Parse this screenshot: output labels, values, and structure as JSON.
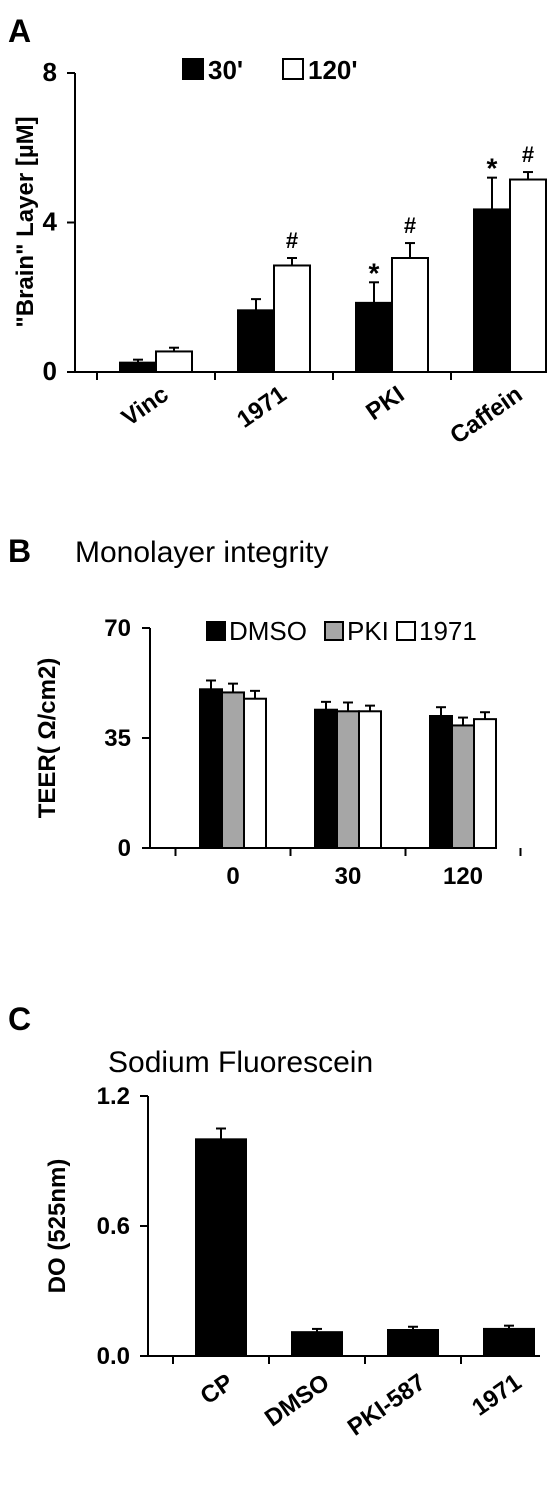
{
  "chart_data": [
    {
      "panel": "A",
      "type": "bar",
      "title": "",
      "ylabel": "\"Brain\" Layer [µM]",
      "xlabel": "",
      "ylim": [
        0,
        8
      ],
      "yticks": [
        "0",
        "4",
        "8"
      ],
      "categories": [
        "Vinc",
        "1971",
        "PKI",
        "Caffein"
      ],
      "series": [
        {
          "name": "30'",
          "values": [
            0.25,
            1.65,
            1.85,
            4.35
          ],
          "errors": [
            0.08,
            0.3,
            0.55,
            0.85
          ],
          "fill": "#000000"
        },
        {
          "name": "120'",
          "values": [
            0.55,
            2.85,
            3.05,
            5.15
          ],
          "errors": [
            0.1,
            0.2,
            0.4,
            0.2
          ],
          "fill": "#ffffff"
        }
      ],
      "annotations": [
        {
          "series": 0,
          "category": 2,
          "text": "*"
        },
        {
          "series": 0,
          "category": 3,
          "text": "*"
        },
        {
          "series": 1,
          "category": 1,
          "text": "#"
        },
        {
          "series": 1,
          "category": 2,
          "text": "#"
        },
        {
          "series": 1,
          "category": 3,
          "text": "#"
        }
      ],
      "legend": "top"
    },
    {
      "panel": "B",
      "type": "bar",
      "title": "Monolayer integrity",
      "ylabel": "TEER( Ω/cm2)",
      "xlabel": "",
      "ylim": [
        0,
        70
      ],
      "yticks": [
        "0",
        "35",
        "70"
      ],
      "categories": [
        "0",
        "30",
        "120"
      ],
      "series": [
        {
          "name": "DMSO",
          "values": [
            50.5,
            44,
            42
          ],
          "errors": [
            2.8,
            2.5,
            2.8
          ],
          "fill": "#000000"
        },
        {
          "name": "PKI",
          "values": [
            49.5,
            43.5,
            39
          ],
          "errors": [
            2.8,
            2.8,
            2.5
          ],
          "fill": "#a6a6a6"
        },
        {
          "name": "1971",
          "values": [
            47.5,
            43.5,
            41
          ],
          "errors": [
            2.5,
            1.8,
            2.2
          ],
          "fill": "#ffffff"
        }
      ],
      "annotations": [],
      "legend": "top"
    },
    {
      "panel": "C",
      "type": "bar",
      "title": "Sodium Fluorescein",
      "ylabel": "DO (525nm)",
      "xlabel": "",
      "ylim": [
        0,
        1.2
      ],
      "yticks": [
        "0.0",
        "0.6",
        "1.2"
      ],
      "categories": [
        "CP",
        "DMSO",
        "PKI-587",
        "1971"
      ],
      "series": [
        {
          "name": "",
          "values": [
            1.0,
            0.11,
            0.12,
            0.125
          ],
          "errors": [
            0.05,
            0.015,
            0.015,
            0.015
          ],
          "fill": "#000000"
        }
      ],
      "annotations": [],
      "legend": "none"
    }
  ]
}
